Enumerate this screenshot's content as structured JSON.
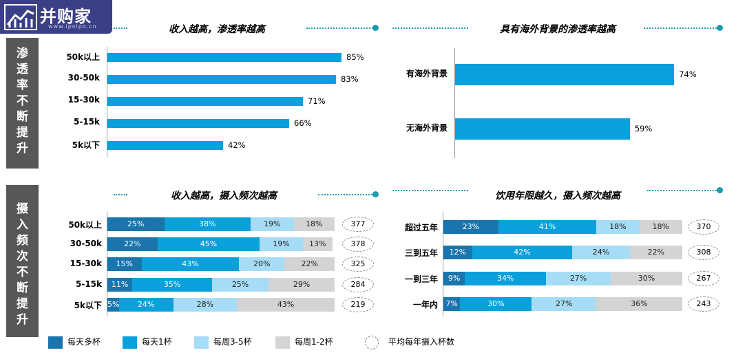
{
  "logo": {
    "text": "并购家",
    "sub": "www.ipoipo.cn"
  },
  "side_labels": {
    "top": "渗透率不断提升",
    "bottom": "摄入频次不断提升"
  },
  "colors": {
    "daily_multi": "#1a75ad",
    "daily_one": "#0aa0dc",
    "weekly_3_5": "#a6dcf5",
    "weekly_1_2": "#d4d4d4",
    "bar": "#0aa0dc",
    "accent": "#1a9bb0",
    "side": "#575757"
  },
  "legend": {
    "items": [
      {
        "label": "每天多杯",
        "color": "#1a75ad"
      },
      {
        "label": "每天1杯",
        "color": "#0aa0dc"
      },
      {
        "label": "每周3-5杯",
        "color": "#a6dcf5"
      },
      {
        "label": "每周1-2杯",
        "color": "#d4d4d4"
      }
    ],
    "avg_label": "平均每年摄入杯数"
  },
  "chart_data": [
    {
      "type": "bar",
      "orientation": "horizontal",
      "title": "收入越高，渗透率越高",
      "categories": [
        "50k以上",
        "30-50k",
        "15-30k",
        "5-15k",
        "5k以下"
      ],
      "values": [
        85,
        83,
        71,
        66,
        42
      ],
      "value_labels": [
        "85%",
        "83%",
        "71%",
        "66%",
        "42%"
      ],
      "xlim": [
        0,
        100
      ]
    },
    {
      "type": "bar",
      "orientation": "horizontal",
      "title": "具有海外背景的渗透率越高",
      "categories": [
        "有海外背景",
        "无海外背景"
      ],
      "values": [
        74,
        59
      ],
      "value_labels": [
        "74%",
        "59%"
      ],
      "xlim": [
        0,
        100
      ]
    },
    {
      "type": "bar",
      "orientation": "horizontal",
      "stacked": true,
      "title": "收入越高，摄入频次越高",
      "categories": [
        "50k以上",
        "30-50k",
        "15-30k",
        "5-15k",
        "5k以下"
      ],
      "series": [
        {
          "name": "每天多杯",
          "values": [
            25,
            22,
            15,
            11,
            5
          ]
        },
        {
          "name": "每天1杯",
          "values": [
            38,
            45,
            43,
            35,
            24
          ]
        },
        {
          "name": "每周3-5杯",
          "values": [
            19,
            19,
            20,
            25,
            28
          ]
        },
        {
          "name": "每周1-2杯",
          "values": [
            18,
            13,
            22,
            29,
            43
          ]
        }
      ],
      "avg_cups": [
        377,
        378,
        325,
        284,
        219
      ]
    },
    {
      "type": "bar",
      "orientation": "horizontal",
      "stacked": true,
      "title": "饮用年限越久，摄入频次越高",
      "categories": [
        "超过五年",
        "三到五年",
        "一到三年",
        "一年内"
      ],
      "series": [
        {
          "name": "每天多杯",
          "values": [
            23,
            12,
            9,
            7
          ]
        },
        {
          "name": "每天1杯",
          "values": [
            41,
            42,
            34,
            30
          ]
        },
        {
          "name": "每周3-5杯",
          "values": [
            18,
            24,
            27,
            27
          ]
        },
        {
          "name": "每周1-2杯",
          "values": [
            18,
            22,
            30,
            36
          ]
        }
      ],
      "avg_cups": [
        370,
        308,
        267,
        243
      ]
    }
  ]
}
